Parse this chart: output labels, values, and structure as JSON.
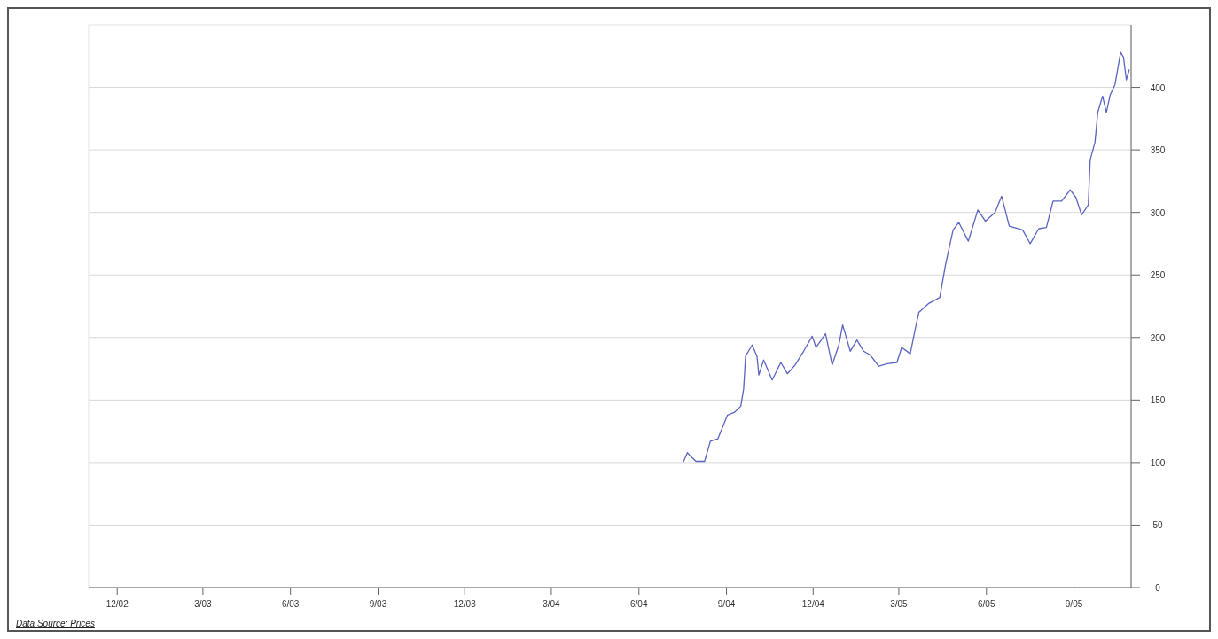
{
  "chart_data": {
    "type": "line",
    "x": [
      "2004-07-18",
      "2004-07-22",
      "2004-07-24",
      "2004-07-31",
      "2004-08-09",
      "2004-08-15",
      "2004-08-23",
      "2004-09-02",
      "2004-09-09",
      "2004-09-16",
      "2004-09-19",
      "2004-09-21",
      "2004-09-28",
      "2004-10-03",
      "2004-10-05",
      "2004-10-10",
      "2004-10-19",
      "2004-10-28",
      "2004-11-04",
      "2004-11-12",
      "2004-11-21",
      "2004-11-30",
      "2004-12-04",
      "2004-12-14",
      "2004-12-21",
      "2004-12-28",
      "2005-01-01",
      "2005-01-09",
      "2005-01-16",
      "2005-01-23",
      "2005-01-30",
      "2005-02-08",
      "2005-02-17",
      "2005-02-27",
      "2005-03-04",
      "2005-03-13",
      "2005-03-18",
      "2005-03-22",
      "2005-04-01",
      "2005-04-13",
      "2005-04-19",
      "2005-04-27",
      "2005-05-03",
      "2005-05-13",
      "2005-05-23",
      "2005-05-31",
      "2005-06-10",
      "2005-06-17",
      "2005-06-25",
      "2005-07-09",
      "2005-07-17",
      "2005-07-26",
      "2005-08-03",
      "2005-08-10",
      "2005-08-19",
      "2005-08-28",
      "2005-09-03",
      "2005-09-09",
      "2005-09-16",
      "2005-09-18",
      "2005-09-23",
      "2005-09-26",
      "2005-10-01",
      "2005-10-05",
      "2005-10-09",
      "2005-10-14",
      "2005-10-20",
      "2005-10-23",
      "2005-10-26",
      "2005-10-29"
    ],
    "series": [
      {
        "color": "#5a64c0",
        "values": [
          101,
          108,
          106,
          101,
          101,
          117,
          119,
          138,
          140,
          145,
          159,
          185,
          194,
          185,
          170,
          182,
          166,
          180,
          171,
          178,
          189,
          201,
          192,
          203,
          178,
          194,
          210,
          189,
          198,
          189,
          186,
          177,
          179,
          180,
          192,
          187,
          206,
          220,
          227,
          232,
          258,
          286,
          292,
          277,
          302,
          293,
          300,
          313,
          289,
          286,
          275,
          287,
          288,
          309,
          309,
          318,
          312,
          298,
          306,
          342,
          356,
          380,
          393,
          380,
          394,
          402,
          428,
          424,
          406,
          414
        ]
      }
    ],
    "xlim": [
      "2002-11-01",
      "2005-10-31"
    ],
    "xticks": [
      {
        "value": "2002-12-01",
        "label": "12/02"
      },
      {
        "value": "2003-03-01",
        "label": "3/03"
      },
      {
        "value": "2003-06-01",
        "label": "6/03"
      },
      {
        "value": "2003-09-01",
        "label": "9/03"
      },
      {
        "value": "2003-12-01",
        "label": "12/03"
      },
      {
        "value": "2004-03-01",
        "label": "3/04"
      },
      {
        "value": "2004-06-01",
        "label": "6/04"
      },
      {
        "value": "2004-09-01",
        "label": "9/04"
      },
      {
        "value": "2004-12-01",
        "label": "12/04"
      },
      {
        "value": "2005-03-01",
        "label": "3/05"
      },
      {
        "value": "2005-06-01",
        "label": "6/05"
      },
      {
        "value": "2005-09-01",
        "label": "9/05"
      }
    ],
    "ylim": [
      0,
      450
    ],
    "yticks": [
      0,
      50,
      100,
      150,
      200,
      250,
      300,
      350,
      400
    ],
    "grid": "y",
    "annotations": [
      "Data Source: Prices"
    ]
  }
}
